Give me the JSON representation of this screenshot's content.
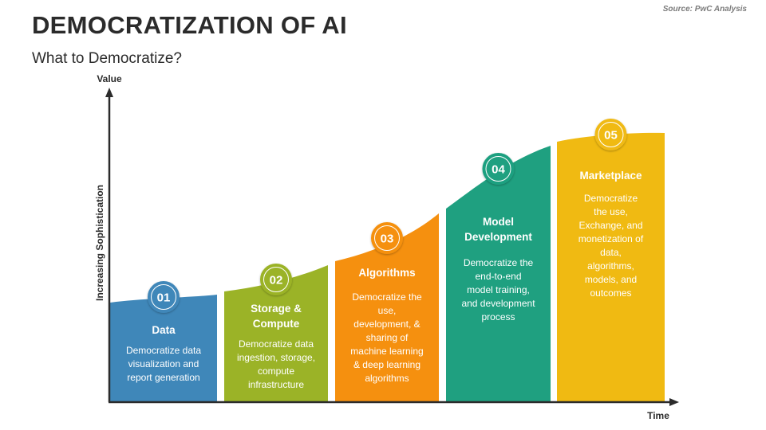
{
  "header": {
    "title": "DEMOCRATIZATION OF AI",
    "subtitle": "What to Democratize?",
    "source": "Source: PwC Analysis"
  },
  "axes": {
    "y_label": "Value",
    "y_side_label": "Increasing Sophistication",
    "x_label": "Time"
  },
  "colors": {
    "text": "#2b2b2b",
    "axis": "#2b2b2b"
  },
  "steps": [
    {
      "number": "01",
      "title": [
        "Data"
      ],
      "description": [
        "Democratize data",
        "visualization and",
        "report generation"
      ],
      "color": "#3f87b9"
    },
    {
      "number": "02",
      "title": [
        "Storage &",
        "Compute"
      ],
      "description": [
        "Democratize data",
        "ingestion, storage,",
        "compute",
        "infrastructure"
      ],
      "color": "#9bb327"
    },
    {
      "number": "03",
      "title": [
        "Algorithms"
      ],
      "description": [
        "Democratize the",
        "use,",
        "development, &",
        "sharing of",
        "machine learning",
        "& deep learning",
        "algorithms"
      ],
      "color": "#f5900f"
    },
    {
      "number": "04",
      "title": [
        "Model",
        "Development"
      ],
      "description": [
        "Democratize the",
        "end-to-end",
        "model training,",
        "and development",
        "process"
      ],
      "color": "#1fa080"
    },
    {
      "number": "05",
      "title": [
        "Marketplace"
      ],
      "description": [
        "Democratize",
        "the use,",
        "Exchange, and",
        "monetization of",
        "data,",
        "algorithms,",
        "models, and",
        "outcomes"
      ],
      "color": "#f0ba12"
    }
  ]
}
